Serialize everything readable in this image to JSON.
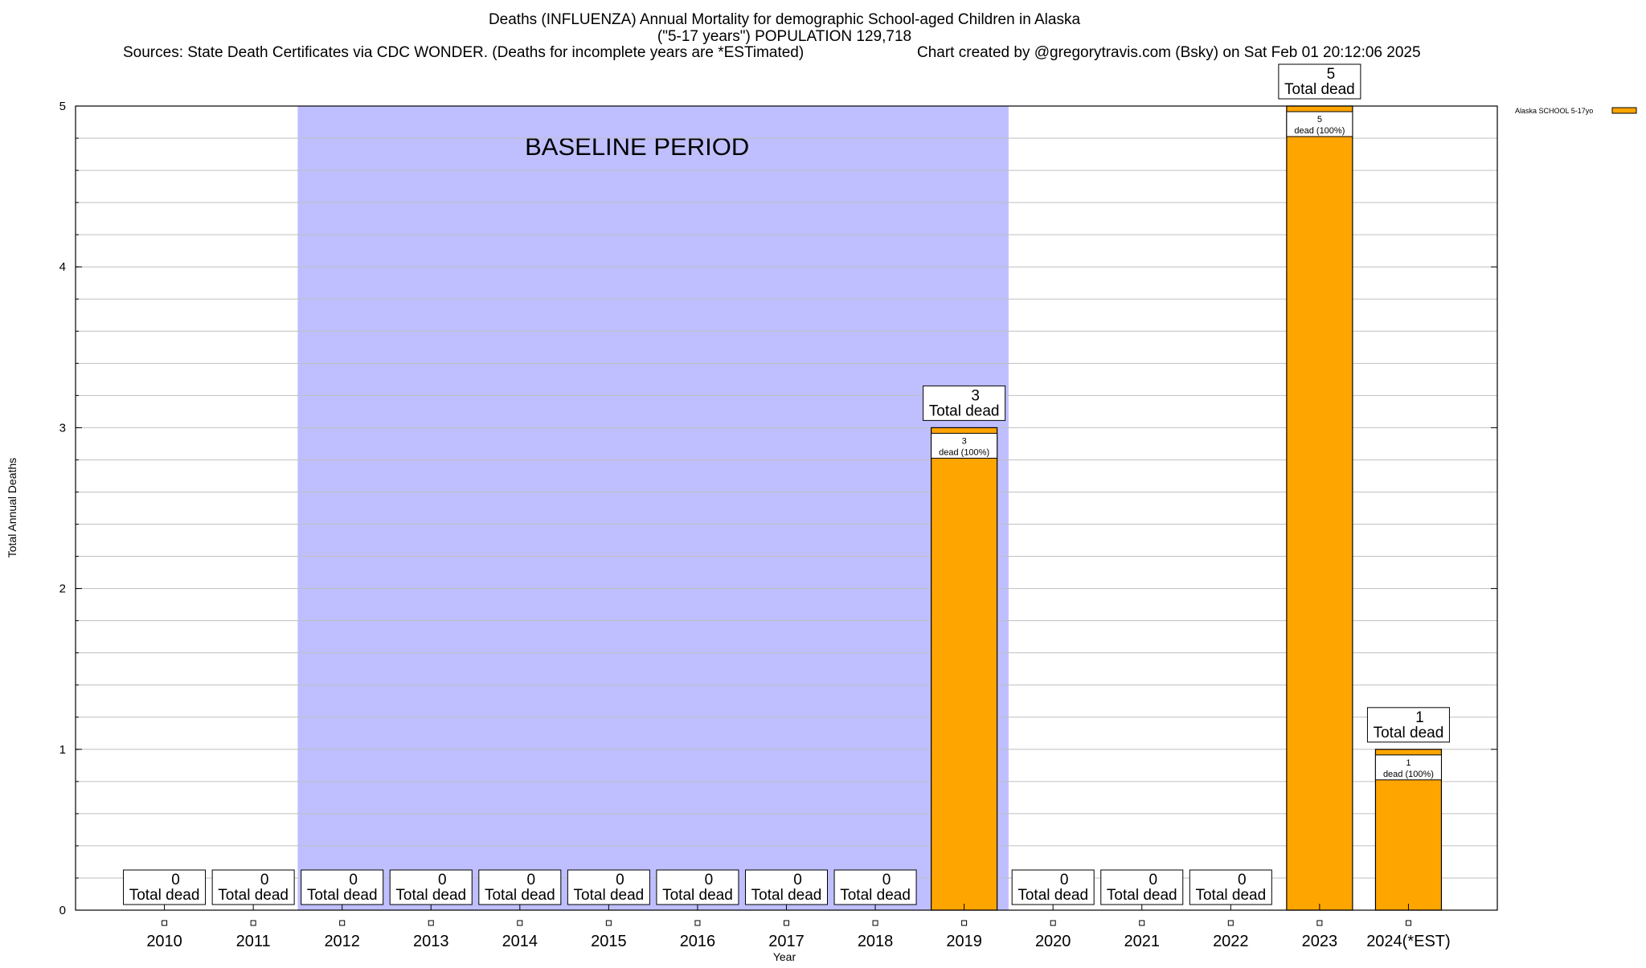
{
  "chart_data": {
    "type": "bar",
    "title": "Deaths (INFLUENZA) Annual Mortality for demographic School-aged Children in Alaska",
    "subtitle": "(\"5-17 years\") POPULATION 129,718",
    "source_note": "Sources: State Death Certificates via CDC WONDER. (Deaths for incomplete years are *ESTimated)",
    "credit_note": "Chart created by @gregorytravis.com (Bsky) on Sat Feb 01 20:12:06 2025",
    "xlabel": "Year",
    "ylabel": "Total Annual Deaths",
    "categories": [
      "2010",
      "2011",
      "2012",
      "2013",
      "2014",
      "2015",
      "2016",
      "2017",
      "2018",
      "2019",
      "2020",
      "2021",
      "2022",
      "2023",
      "2024(*EST)"
    ],
    "series": [
      {
        "name": "Alaska SCHOOL 5-17yo",
        "color": "#ffa500",
        "values": [
          0,
          0,
          0,
          0,
          0,
          0,
          0,
          0,
          0,
          3,
          0,
          0,
          0,
          5,
          1
        ]
      }
    ],
    "ylim": [
      0,
      5
    ],
    "yticks": [
      0,
      1,
      2,
      3,
      4,
      5
    ],
    "total_label": "Total dead",
    "segment_label_suffix": "dead (100%)",
    "baseline": {
      "label": "BASELINE PERIOD",
      "start": "2012",
      "end": "2019",
      "color": "#bfbfff"
    },
    "grid": true,
    "legend_position": "top-right"
  }
}
